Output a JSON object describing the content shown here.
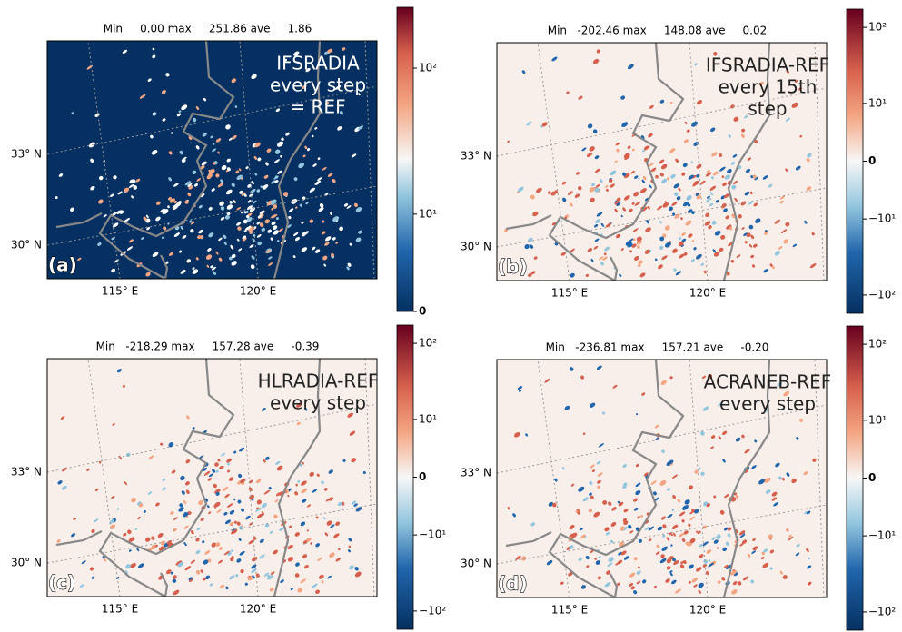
{
  "panels": [
    {
      "label": "(a)",
      "stats": "Min     0.00 max     251.86 ave     1.86",
      "annotation": [
        "IFSRADIA",
        "every step",
        "= REF"
      ],
      "lat_labels": [
        "33° N",
        "30° N"
      ],
      "lon_labels": [
        "115° E",
        "120° E"
      ],
      "colorbar_ticks": [
        "10²",
        "10¹",
        "0"
      ]
    },
    {
      "label": "(b)",
      "stats": "Min   -202.46 max     148.08 ave     0.02",
      "annotation": [
        "IFSRADIA-REF",
        "every 15th",
        "step"
      ],
      "lat_labels": [
        "33° N",
        "30° N"
      ],
      "lon_labels": [
        "115° E",
        "120° E"
      ],
      "colorbar_ticks": [
        "10²",
        "10¹",
        "0",
        "−10¹",
        "−10²"
      ]
    },
    {
      "label": "(c)",
      "stats": "Min   -218.29 max     157.28 ave     -0.39",
      "annotation": [
        "HLRADIA-REF",
        "every step"
      ],
      "lat_labels": [
        "33° N",
        "30° N"
      ],
      "lon_labels": [
        "115° E",
        "120° E"
      ],
      "colorbar_ticks": [
        "10²",
        "10¹",
        "0",
        "−10¹",
        "−10²"
      ]
    },
    {
      "label": "(d)",
      "stats": "Min   -236.81 max     157.21 ave     -0.20",
      "annotation": [
        "ACRANEB-REF",
        "every step"
      ],
      "lat_labels": [
        "33° N",
        "30° N"
      ],
      "lon_labels": [
        "115° E",
        "120° E"
      ],
      "colorbar_ticks": [
        "10²",
        "10¹",
        "0",
        "−10¹",
        "−10²"
      ]
    }
  ]
}
